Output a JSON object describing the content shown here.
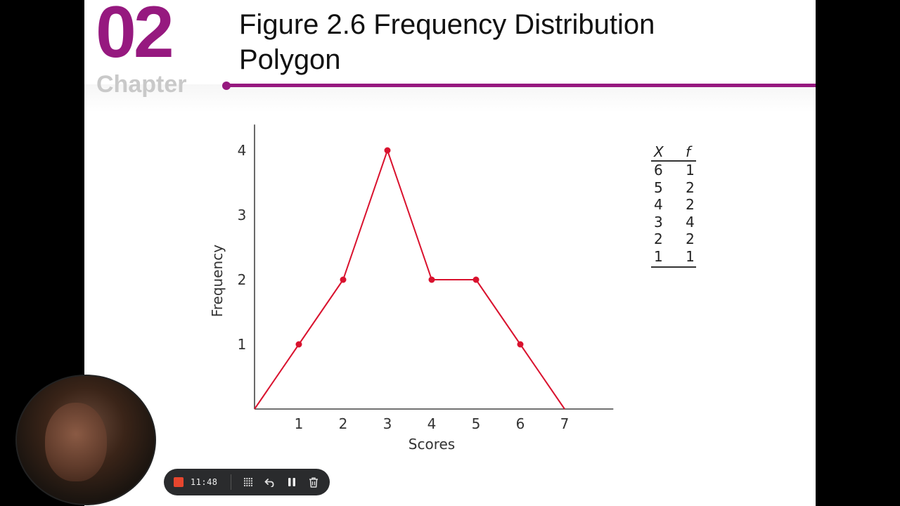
{
  "slide": {
    "chapter_number": "02",
    "chapter_word": "Chapter",
    "title_line1": "Figure 2.6 Frequency Distribution",
    "title_line2": "Polygon",
    "accent_color": "#96197f"
  },
  "chart_data": {
    "type": "line",
    "x": [
      0,
      1,
      2,
      3,
      4,
      5,
      6,
      7
    ],
    "y": [
      0,
      1,
      2,
      4,
      2,
      2,
      1,
      0
    ],
    "marker_x": [
      1,
      2,
      3,
      4,
      5,
      6
    ],
    "xlabel": "Scores",
    "ylabel": "Frequency",
    "xticks": [
      "1",
      "2",
      "3",
      "4",
      "5",
      "6",
      "7"
    ],
    "yticks": [
      "1",
      "2",
      "3",
      "4"
    ],
    "xlim": [
      0,
      8.1
    ],
    "ylim": [
      0,
      4.4
    ],
    "grid": false,
    "line_color": "#d9122e"
  },
  "frequency_table": {
    "headers": [
      "X",
      "f"
    ],
    "rows": [
      [
        "6",
        "1"
      ],
      [
        "5",
        "2"
      ],
      [
        "4",
        "2"
      ],
      [
        "3",
        "4"
      ],
      [
        "2",
        "2"
      ],
      [
        "1",
        "1"
      ]
    ]
  },
  "recorder": {
    "timer": "11:48",
    "record_color": "#e6462e",
    "icons": [
      "grid-icon",
      "undo-icon",
      "pause-icon",
      "trash-icon"
    ]
  }
}
